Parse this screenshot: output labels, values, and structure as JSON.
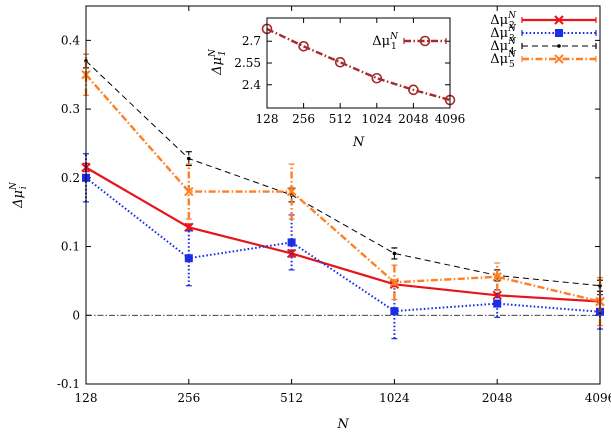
{
  "chart_data": [
    {
      "type": "line",
      "xlabel": "N",
      "ylabel": "Δμ_i^N",
      "x": [
        128,
        256,
        512,
        1024,
        2048,
        4096
      ],
      "x_tick_labels": [
        "128",
        "256",
        "512",
        "1024",
        "2048",
        "4096"
      ],
      "x_scale": "log2",
      "ylim": [
        -0.1,
        0.45
      ],
      "y_ticks": [
        -0.1,
        0,
        0.1,
        0.2,
        0.3,
        0.4
      ],
      "y_tick_labels": [
        "-0.1",
        "0",
        "0.1",
        "0.2",
        "0.3",
        "0.4"
      ],
      "reference_line_y": 0,
      "legend_position": "top-right",
      "series": [
        {
          "name": "Δμ_2^N",
          "color": "#e8141b",
          "marker": "x",
          "line": "solid",
          "values": [
            0.215,
            0.128,
            0.09,
            0.045,
            0.029,
            0.02
          ],
          "errors": [
            0.006,
            0.005,
            0.005,
            0.003,
            0.003,
            0.003
          ]
        },
        {
          "name": "Δμ_3^N",
          "color": "#1a2ee8",
          "marker": "square",
          "line": "dotted",
          "values": [
            0.2,
            0.083,
            0.106,
            0.006,
            0.017,
            0.005
          ],
          "errors": [
            0.035,
            0.04,
            0.04,
            0.04,
            0.02,
            0.025
          ]
        },
        {
          "name": "Δμ_4^N",
          "color": "#000000",
          "marker": "dot",
          "line": "dashed",
          "values": [
            0.37,
            0.228,
            0.175,
            0.09,
            0.058,
            0.043
          ],
          "errors": [
            0.01,
            0.01,
            0.01,
            0.008,
            0.008,
            0.008
          ]
        },
        {
          "name": "Δμ_5^N",
          "color": "#ff7f24",
          "marker": "x",
          "line": "dash-dot",
          "values": [
            0.35,
            0.18,
            0.18,
            0.048,
            0.056,
            0.02
          ],
          "errors": [
            0.03,
            0.04,
            0.04,
            0.025,
            0.02,
            0.035
          ]
        }
      ]
    },
    {
      "type": "line",
      "inset": true,
      "xlabel": "N",
      "ylabel": "Δμ_1^N",
      "x": [
        128,
        256,
        512,
        1024,
        2048,
        4096
      ],
      "x_tick_labels": [
        "128",
        "256",
        "512",
        "1024",
        "2048",
        "4096"
      ],
      "x_scale": "log2",
      "ylim": [
        2.24,
        2.86
      ],
      "y_ticks": [
        2.4,
        2.55,
        2.7
      ],
      "y_tick_labels": [
        "2.4",
        "2.55",
        "2.7"
      ],
      "legend_position": "top-right",
      "series": [
        {
          "name": "Δμ_1^N",
          "color": "#a52a2a",
          "marker": "circle",
          "line": "dash-dot",
          "values": [
            2.785,
            2.665,
            2.555,
            2.445,
            2.365,
            2.295
          ]
        }
      ]
    }
  ]
}
